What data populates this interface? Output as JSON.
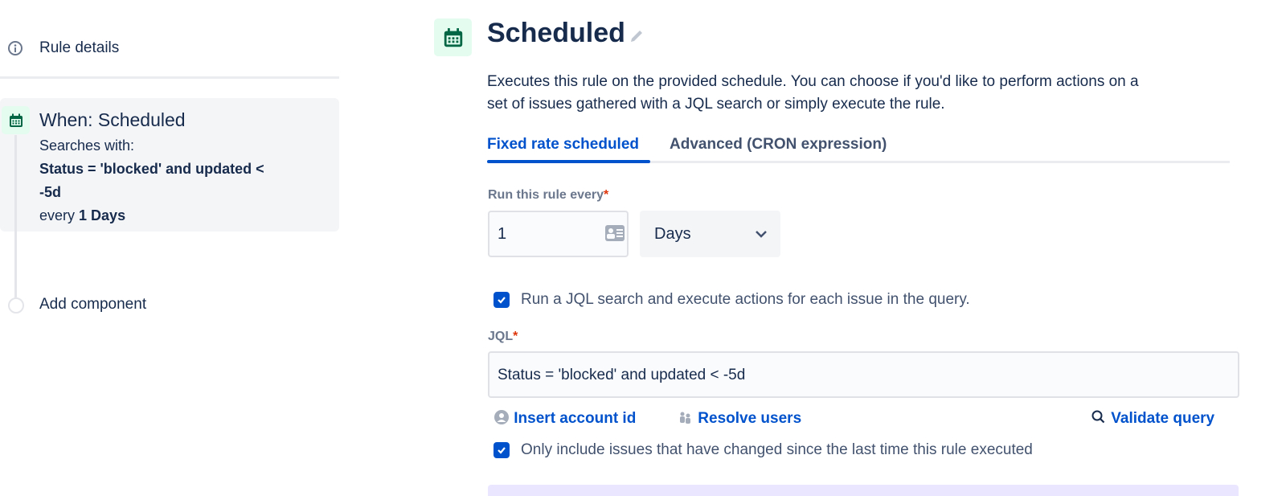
{
  "sidebar": {
    "rule_details": "Rule details",
    "trigger": {
      "title": "When: Scheduled",
      "searches_with": "Searches with:",
      "query_line1": "Status = 'blocked' and updated <",
      "query_line2": "-5d",
      "every_prefix": "every",
      "every_value": "1 Days"
    },
    "add_component": "Add component"
  },
  "main": {
    "title": "Scheduled",
    "description_line1": "Executes this rule on the provided schedule. You can choose if you'd like to perform actions on a",
    "description_line2": "set of issues gathered with a JQL search or simply execute the rule.",
    "tabs": [
      {
        "label": "Fixed rate scheduled",
        "active": true
      },
      {
        "label": "Advanced (CRON expression)",
        "active": false
      }
    ],
    "run_every_label": "Run this rule every",
    "required_mark": "*",
    "run_every_value": "1",
    "unit_selected": "Days",
    "jql_checkbox": {
      "label": "Run a JQL search and execute actions for each issue in the query.",
      "checked": true
    },
    "jql_label": "JQL",
    "jql_value": "Status = 'blocked' and updated < -5d",
    "links": {
      "insert_account_id": "Insert account id",
      "resolve_users": "Resolve users",
      "validate_query": "Validate query"
    },
    "changed_checkbox": {
      "label": "Only include issues that have changed since the last time this rule executed",
      "checked": true
    }
  },
  "colors": {
    "accent": "#0052cc",
    "icon_green": "#006644",
    "icon_bg": "#e3fcef",
    "required": "#de350b"
  }
}
